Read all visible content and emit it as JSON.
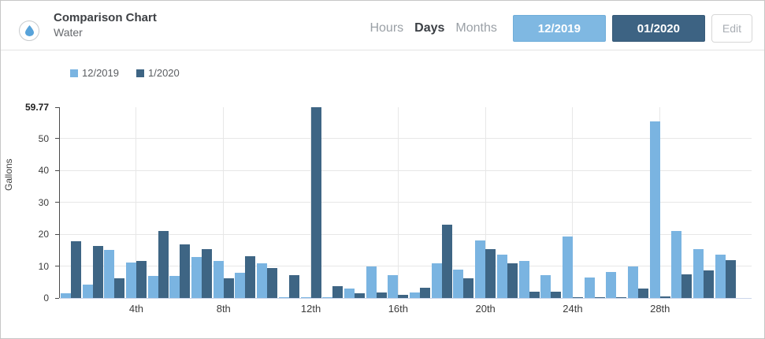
{
  "header": {
    "title": "Comparison Chart",
    "subtitle": "Water",
    "icon": "water-drop-icon",
    "period_tabs": [
      {
        "label": "Hours",
        "active": false
      },
      {
        "label": "Days",
        "active": true
      },
      {
        "label": "Months",
        "active": false
      }
    ],
    "range_buttons": [
      {
        "label": "12/2019",
        "color": "#7fb8e2"
      },
      {
        "label": "01/2020",
        "color": "#3d6383"
      }
    ],
    "edit_label": "Edit"
  },
  "legend": [
    {
      "label": "12/2019",
      "color": "#7ab4e1"
    },
    {
      "label": "1/2020",
      "color": "#3e6584"
    }
  ],
  "chart_data": {
    "type": "bar",
    "title": "",
    "xlabel": "",
    "ylabel": "Gallons",
    "ylim": [
      0,
      59.77
    ],
    "ymax_label": "59.77",
    "yticks": [
      0,
      10,
      20,
      30,
      40,
      50
    ],
    "grid": true,
    "legend_position": "top-left",
    "categories": [
      1,
      2,
      3,
      4,
      5,
      6,
      7,
      8,
      9,
      10,
      11,
      12,
      13,
      14,
      15,
      16,
      17,
      18,
      19,
      20,
      21,
      22,
      23,
      24,
      25,
      26,
      27,
      28,
      29,
      30,
      31
    ],
    "xtick_labels": [
      "4th",
      "8th",
      "12th",
      "16th",
      "20th",
      "24th",
      "28th"
    ],
    "xtick_days": [
      4,
      8,
      12,
      16,
      20,
      24,
      28
    ],
    "series": [
      {
        "name": "12/2019",
        "color": "#7ab4e1",
        "values": [
          1.4,
          4.1,
          15.0,
          11.2,
          7.0,
          6.9,
          12.9,
          11.5,
          7.8,
          10.8,
          0.2,
          0.2,
          0.3,
          2.9,
          9.8,
          7.2,
          1.8,
          10.8,
          8.9,
          18.0,
          13.5,
          11.6,
          7.1,
          19.2,
          6.4,
          8.2,
          9.8,
          55.4,
          21.1,
          15.3,
          13.6
        ]
      },
      {
        "name": "1/2020",
        "color": "#3e6584",
        "values": [
          17.7,
          16.2,
          6.2,
          11.6,
          21.1,
          16.8,
          15.2,
          6.2,
          13.2,
          9.3,
          7.2,
          59.77,
          3.7,
          1.6,
          1.8,
          1.1,
          3.3,
          23.0,
          6.2,
          15.3,
          10.9,
          2.0,
          1.9,
          0.3,
          0.3,
          0.3,
          3.0,
          0.6,
          7.3,
          8.7,
          11.8
        ]
      }
    ]
  }
}
